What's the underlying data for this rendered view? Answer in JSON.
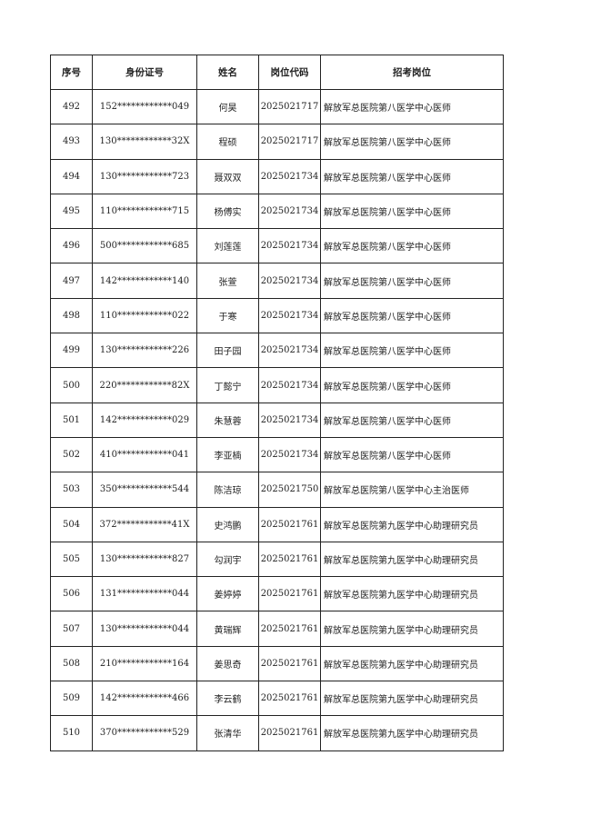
{
  "table": {
    "headers": [
      "序号",
      "身份证号",
      "姓名",
      "岗位代码",
      "招考岗位"
    ],
    "rows": [
      [
        "492",
        "152************049",
        "何昊",
        "2025021717",
        "解放军总医院第八医学中心医师"
      ],
      [
        "493",
        "130************32X",
        "程硕",
        "2025021717",
        "解放军总医院第八医学中心医师"
      ],
      [
        "494",
        "130************723",
        "聂双双",
        "2025021734",
        "解放军总医院第八医学中心医师"
      ],
      [
        "495",
        "110************715",
        "杨傅实",
        "2025021734",
        "解放军总医院第八医学中心医师"
      ],
      [
        "496",
        "500************685",
        "刘莲莲",
        "2025021734",
        "解放军总医院第八医学中心医师"
      ],
      [
        "497",
        "142************140",
        "张萱",
        "2025021734",
        "解放军总医院第八医学中心医师"
      ],
      [
        "498",
        "110************022",
        "于寒",
        "2025021734",
        "解放军总医院第八医学中心医师"
      ],
      [
        "499",
        "130************226",
        "田子园",
        "2025021734",
        "解放军总医院第八医学中心医师"
      ],
      [
        "500",
        "220************82X",
        "丁懿宁",
        "2025021734",
        "解放军总医院第八医学中心医师"
      ],
      [
        "501",
        "142************029",
        "朱慧蓉",
        "2025021734",
        "解放军总医院第八医学中心医师"
      ],
      [
        "502",
        "410************041",
        "李亚楠",
        "2025021734",
        "解放军总医院第八医学中心医师"
      ],
      [
        "503",
        "350************544",
        "陈洁琼",
        "2025021750",
        "解放军总医院第八医学中心主治医师"
      ],
      [
        "504",
        "372************41X",
        "史鸿鹏",
        "2025021761",
        "解放军总医院第九医学中心助理研究员"
      ],
      [
        "505",
        "130************827",
        "勾润宇",
        "2025021761",
        "解放军总医院第九医学中心助理研究员"
      ],
      [
        "506",
        "131************044",
        "姜婷婷",
        "2025021761",
        "解放军总医院第九医学中心助理研究员"
      ],
      [
        "507",
        "130************044",
        "黄瑞辉",
        "2025021761",
        "解放军总医院第九医学中心助理研究员"
      ],
      [
        "508",
        "210************164",
        "姜思奇",
        "2025021761",
        "解放军总医院第九医学中心助理研究员"
      ],
      [
        "509",
        "142************466",
        "李云鹤",
        "2025021761",
        "解放军总医院第九医学中心助理研究员"
      ],
      [
        "510",
        "370************529",
        "张清华",
        "2025021761",
        "解放军总医院第九医学中心助理研究员"
      ]
    ]
  }
}
